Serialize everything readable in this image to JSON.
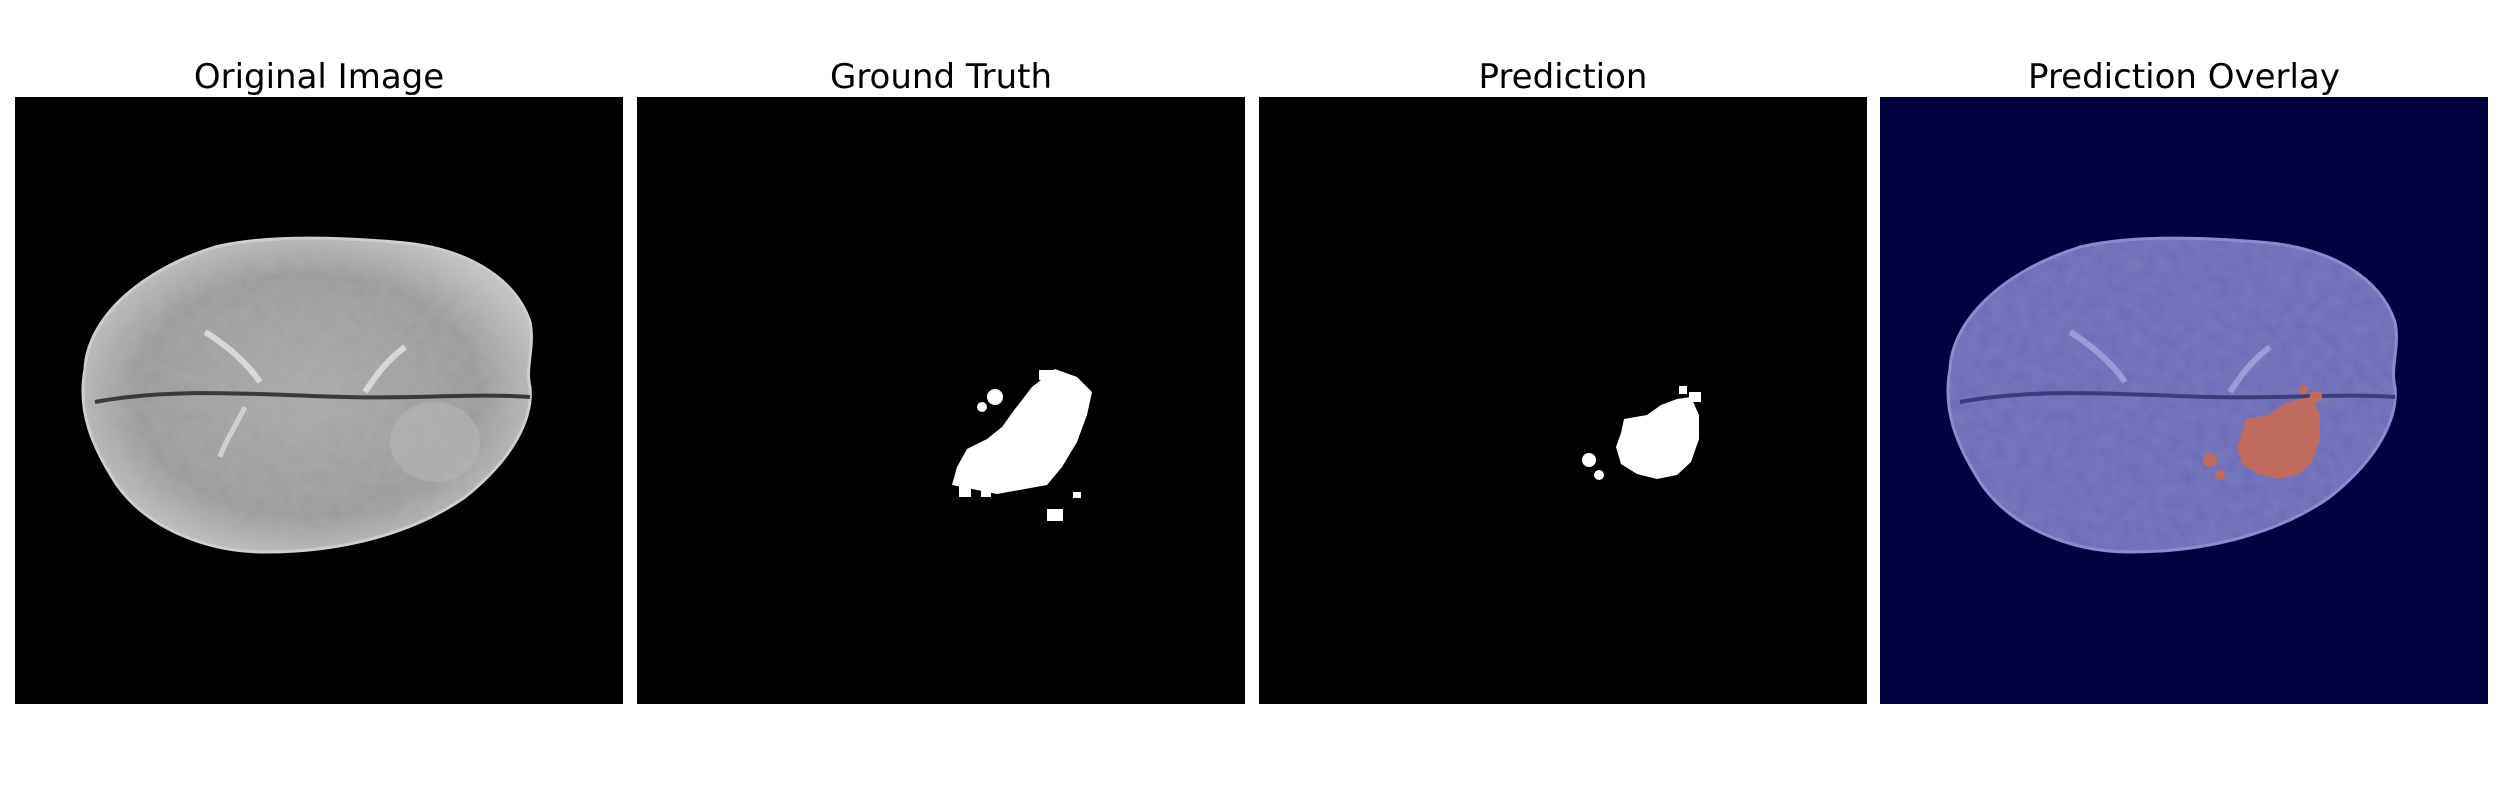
{
  "panels": [
    {
      "title": "Original Image"
    },
    {
      "title": "Ground Truth"
    },
    {
      "title": "Prediction"
    },
    {
      "title": "Prediction Overlay"
    }
  ],
  "colors": {
    "figure_background": "#ffffff",
    "image_background": "#000000",
    "mask_foreground": "#ffffff",
    "overlay_background": "#02003f",
    "overlay_brain_tint": "#6b6ab8",
    "overlay_tumor": "#c46b5c"
  },
  "icons": {
    "original": "brain-mri-slice",
    "ground_truth": "tumor-mask",
    "prediction": "predicted-mask",
    "overlay": "mask-overlay"
  }
}
